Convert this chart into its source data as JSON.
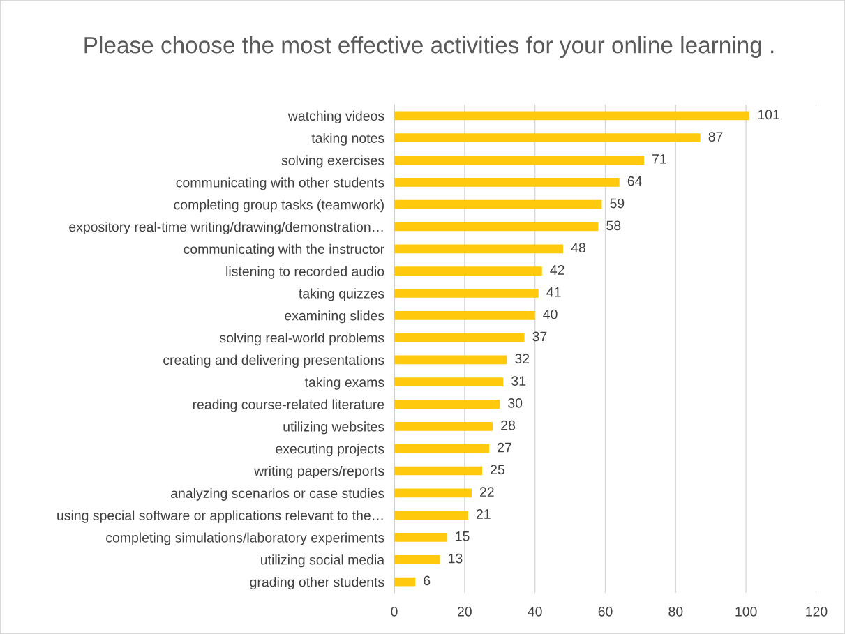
{
  "chart_data": {
    "type": "bar",
    "orientation": "horizontal",
    "title": "Please choose the most effective activities for your online learning .",
    "categories": [
      "watching videos",
      "taking notes",
      "solving exercises",
      "communicating with other students",
      "completing group tasks (teamwork)",
      "expository real-time writing/drawing/demonstration…",
      "communicating with the instructor",
      "listening to recorded audio",
      "taking quizzes",
      "examining slides",
      "solving real-world problems",
      "creating and delivering presentations",
      "taking exams",
      "reading course-related literature",
      "utilizing websites",
      "executing projects",
      "writing papers/reports",
      "analyzing scenarios or case studies",
      "using special software or applications relevant to the…",
      "completing simulations/laboratory experiments",
      "utilizing social media",
      "grading other students"
    ],
    "values": [
      101,
      87,
      71,
      64,
      59,
      58,
      48,
      42,
      41,
      40,
      37,
      32,
      31,
      30,
      28,
      27,
      25,
      22,
      21,
      15,
      13,
      6
    ],
    "color": "#ffc90e",
    "xlim": [
      0,
      120
    ],
    "xticks": [
      0,
      20,
      40,
      60,
      80,
      100,
      120
    ],
    "grid": "x",
    "data_labels": true,
    "legend": false
  }
}
